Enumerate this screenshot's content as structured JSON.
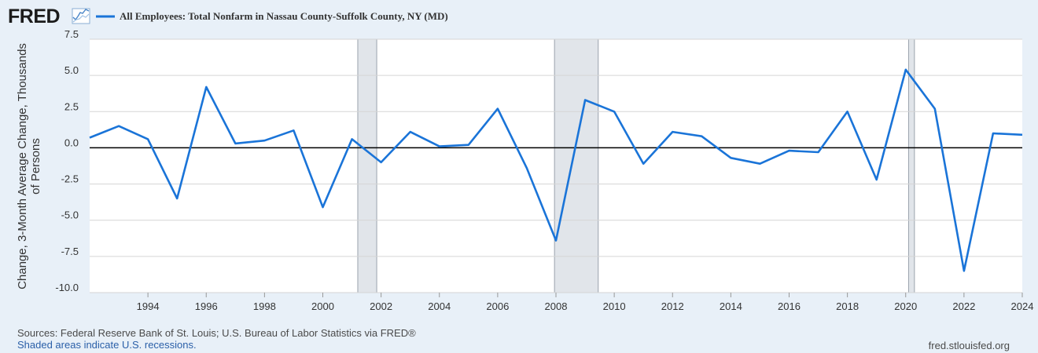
{
  "brand": {
    "name": "FRED"
  },
  "colors": {
    "series": "#1a74d8",
    "recession": "#e1e5ea",
    "recession_edge": "#9aa3ad",
    "grid": "#d5d5d5",
    "plot_bg": "#ffffff",
    "page_bg": "#e8f0f8"
  },
  "footer": {
    "sources": "Sources: Federal Reserve Bank of St. Louis; U.S. Bureau of Labor Statistics via FRED®",
    "recessions_note": "Shaded areas indicate U.S. recessions.",
    "site": "fred.stlouisfed.org"
  },
  "chart_data": {
    "type": "line",
    "title": "All Employees: Total Nonfarm in Nassau County-Suffolk County, NY (MD)",
    "ylabel_lines": [
      "Change, 3-Month Average Change, Thousands",
      "of Persons"
    ],
    "xlim": [
      1992.0,
      2024.0
    ],
    "ylim": [
      -10.0,
      7.5
    ],
    "yticks": [
      7.5,
      5.0,
      2.5,
      0.0,
      -2.5,
      -5.0,
      -7.5,
      -10.0
    ],
    "ytick_labels": [
      "7.5",
      "5.0",
      "2.5",
      "0.0",
      "-2.5",
      "-5.0",
      "-7.5",
      "-10.0"
    ],
    "xticks": [
      1994,
      1996,
      1998,
      2000,
      2002,
      2004,
      2006,
      2008,
      2010,
      2012,
      2014,
      2016,
      2018,
      2020,
      2022,
      2024
    ],
    "xtick_labels": [
      "1994",
      "1996",
      "1998",
      "2000",
      "2002",
      "2004",
      "2006",
      "2008",
      "2010",
      "2012",
      "2014",
      "2016",
      "2018",
      "2020",
      "2022",
      "2024"
    ],
    "zero_line": 0.0,
    "recessions": [
      [
        2001.2,
        2001.85
      ],
      [
        2007.95,
        2009.45
      ],
      [
        2020.1,
        2020.3
      ]
    ],
    "series": [
      {
        "name": "All Employees: Total Nonfarm in Nassau County-Suffolk County, NY (MD)",
        "x": [
          1992,
          1993,
          1994,
          1995,
          1996,
          1997,
          1998,
          1999,
          2000,
          2001,
          2002,
          2003,
          2004,
          2005,
          2006,
          2007,
          2008,
          2009,
          2010,
          2011,
          2012,
          2013,
          2014,
          2015,
          2016,
          2017,
          2018,
          2019,
          2020,
          2021,
          2022,
          2023,
          2024
        ],
        "values": [
          0.7,
          1.5,
          0.6,
          -3.5,
          4.2,
          0.3,
          0.5,
          1.2,
          -4.1,
          0.6,
          -1.0,
          1.1,
          0.1,
          0.2,
          2.7,
          -1.4,
          -6.4,
          3.3,
          2.5,
          -1.1,
          1.1,
          0.8,
          -0.7,
          -1.1,
          -0.2,
          -0.3,
          2.5,
          -2.2,
          5.4,
          2.7,
          -8.5,
          1.0,
          0.9
        ]
      }
    ]
  }
}
